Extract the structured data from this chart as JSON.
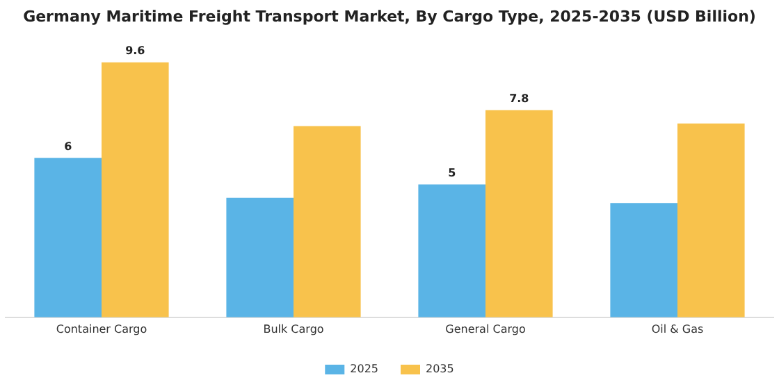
{
  "chart_data": {
    "type": "bar",
    "title": "Germany Maritime Freight Transport Market, By Cargo Type, 2025-2035 (USD Billion)",
    "categories": [
      "Container Cargo",
      "Bulk Cargo",
      "General Cargo",
      "Oil & Gas"
    ],
    "series": [
      {
        "name": "2025",
        "color": "#5ab4e6",
        "values": [
          6,
          4.5,
          5,
          4.3
        ],
        "value_labels": [
          "6",
          null,
          "5",
          null
        ]
      },
      {
        "name": "2035",
        "color": "#f8c24c",
        "values": [
          9.6,
          7.2,
          7.8,
          7.3
        ],
        "value_labels": [
          "9.6",
          null,
          "7.8",
          null
        ]
      }
    ],
    "tick_labels": "x",
    "grid": false,
    "legend": "bottom"
  }
}
